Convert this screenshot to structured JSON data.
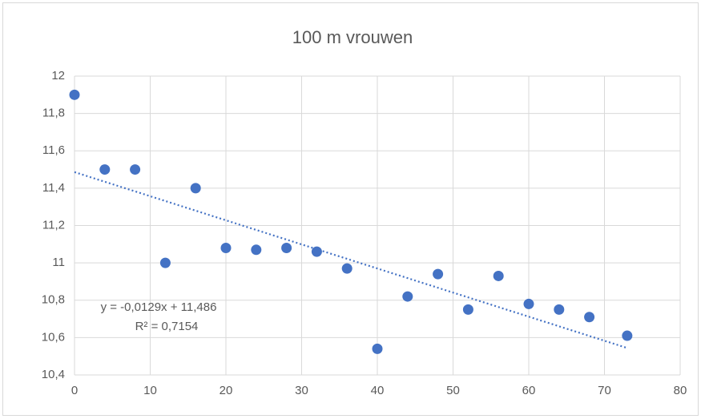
{
  "chart_data": {
    "type": "scatter",
    "title": "100 m vrouwen",
    "series": [
      {
        "color": "#4472c4",
        "x": [
          0,
          4,
          8,
          12,
          16,
          20,
          24,
          28,
          32,
          36,
          40,
          44,
          48,
          52,
          56,
          60,
          64,
          68,
          73
        ],
        "values": [
          11.9,
          11.5,
          11.5,
          11.0,
          11.4,
          11.08,
          11.07,
          11.08,
          11.06,
          10.97,
          10.54,
          10.82,
          10.94,
          10.75,
          10.93,
          10.78,
          10.75,
          10.71,
          10.61
        ]
      }
    ],
    "trendline": {
      "equation": "y = -0,0129x + 11,486",
      "r_squared": "R² = 0,7154",
      "slope": -0.0129,
      "intercept": 11.486,
      "color": "#4472c4"
    },
    "xlim": [
      0,
      80
    ],
    "xticks": [
      0,
      10,
      20,
      30,
      40,
      50,
      60,
      70,
      80
    ],
    "ylim": [
      10.4,
      12
    ],
    "yticks": [
      {
        "value": 10.4,
        "label": "10,4"
      },
      {
        "value": 10.6,
        "label": "10,6"
      },
      {
        "value": 10.8,
        "label": "10,8"
      },
      11,
      {
        "value": 11.2,
        "label": "11,2"
      },
      {
        "value": 11.4,
        "label": "11,4"
      },
      {
        "value": 11.6,
        "label": "11,6"
      },
      {
        "value": 11.8,
        "label": "11,8"
      },
      12
    ],
    "grid": true
  }
}
